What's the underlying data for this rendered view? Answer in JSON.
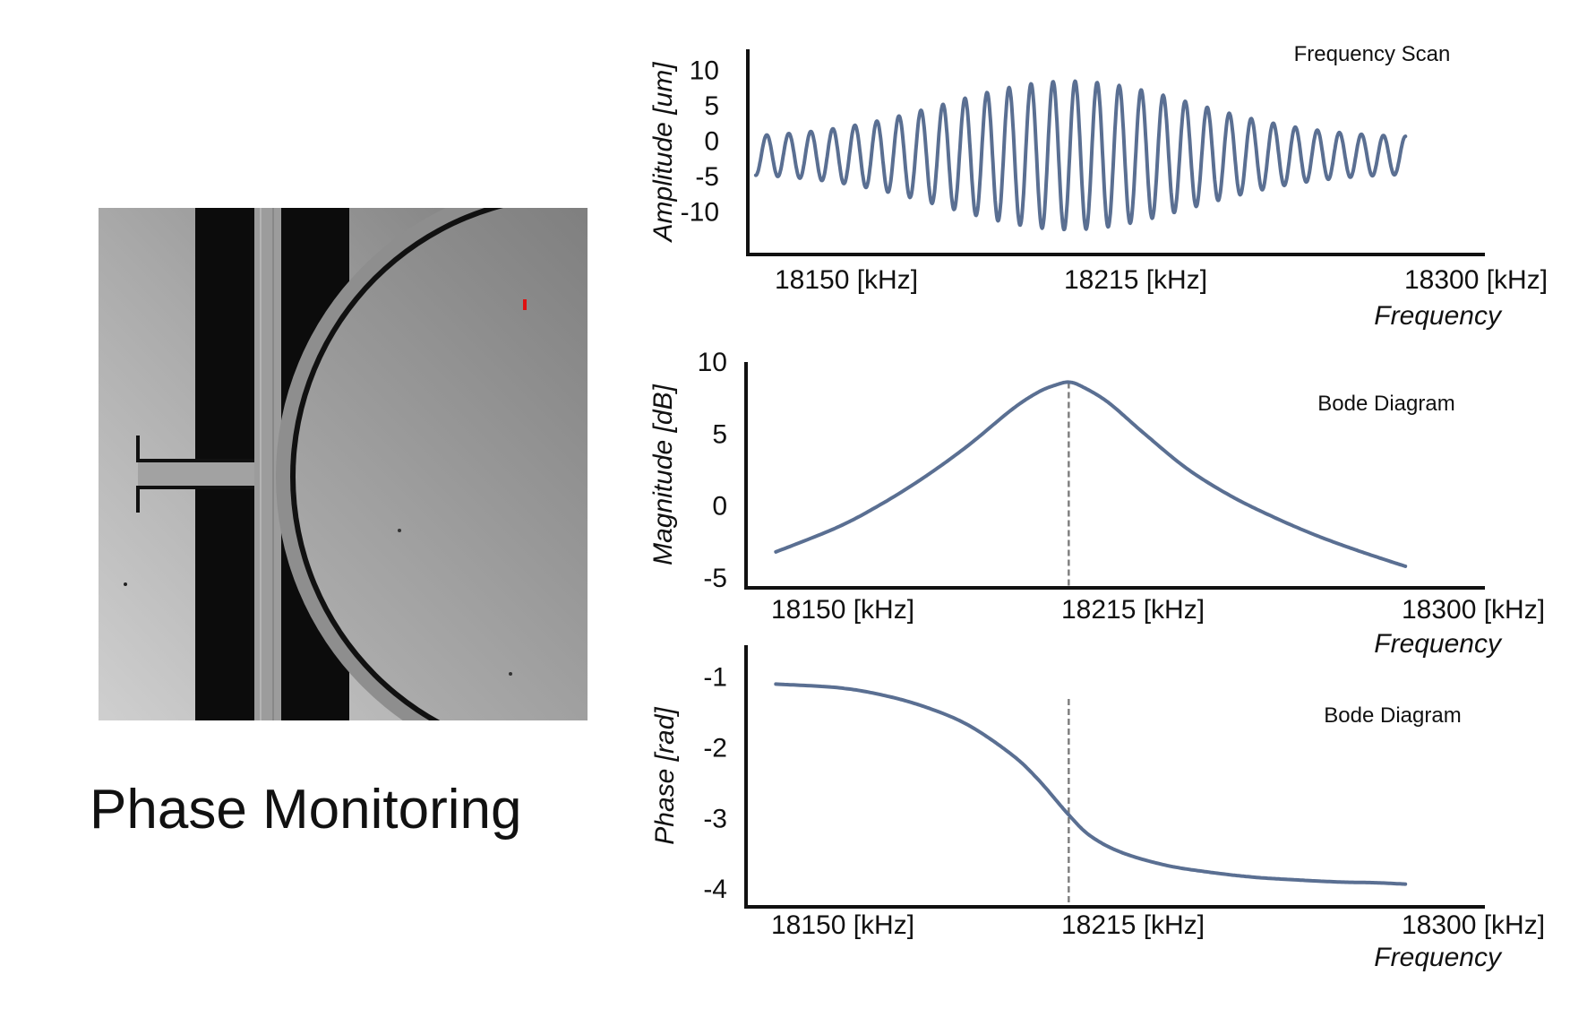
{
  "caption": "Phase Monitoring",
  "colors": {
    "series": "#5a6f92",
    "marker": "#808080",
    "axis": "#111111"
  },
  "chart_data": [
    {
      "type": "line",
      "title": "Frequency Scan",
      "xlabel": "Frequency",
      "ylabel": "Amplitude [um]",
      "xlim": [
        18140,
        18300
      ],
      "ylim": [
        -15,
        13
      ],
      "y_ticks": [
        "10",
        "5",
        "0",
        "-5",
        "-10"
      ],
      "y_tick_values": [
        10,
        5,
        0,
        -5,
        -10
      ],
      "x_ticks": [
        "18150 [kHz]",
        "18215 [kHz]",
        "18300 [kHz]"
      ],
      "series": [
        {
          "oscillation": {
            "x_start": 18141,
            "x_end": 18290,
            "cycles": 29.5,
            "center": -2,
            "envelope_peak_x": 18213,
            "envelope": {
              "min": 2.5,
              "peak": 10.5
            }
          }
        }
      ]
    },
    {
      "type": "line",
      "title": "Bode Diagram",
      "xlabel": "Frequency",
      "ylabel": "Magnitude [dB]",
      "xlim": [
        18140,
        18300
      ],
      "ylim": [
        -5.2,
        10
      ],
      "y_ticks": [
        "10",
        "5",
        "0",
        "-5"
      ],
      "y_tick_values": [
        10,
        5,
        0,
        -5
      ],
      "x_ticks": [
        "18150 [kHz]",
        "18215 [kHz]",
        "18300 [kHz]"
      ],
      "resonance_x": 18213,
      "series": [
        {
          "x": [
            18146,
            18160,
            18170,
            18180,
            18190,
            18200,
            18206,
            18210,
            18213,
            18216,
            18222,
            18230,
            18240,
            18250,
            18260,
            18270,
            18280,
            18290
          ],
          "y": [
            -3.2,
            -1.5,
            0.1,
            2,
            4.2,
            6.7,
            7.9,
            8.4,
            8.6,
            8.3,
            7.2,
            5.1,
            2.6,
            0.7,
            -0.8,
            -2.1,
            -3.2,
            -4.2
          ]
        }
      ]
    },
    {
      "type": "line",
      "title": "Bode Diagram",
      "xlabel": "Frequency",
      "ylabel": "Phase [rad]",
      "xlim": [
        18140,
        18300
      ],
      "ylim": [
        -4.15,
        -0.55
      ],
      "y_ticks": [
        "-1",
        "-2",
        "-3",
        "-4"
      ],
      "y_tick_values": [
        -1,
        -2,
        -3,
        -4
      ],
      "x_ticks": [
        "18150 [kHz]",
        "18215 [kHz]",
        "18300 [kHz]"
      ],
      "resonance_x": 18213,
      "series": [
        {
          "x": [
            18146,
            18160,
            18170,
            18180,
            18190,
            18200,
            18206,
            18213,
            18218,
            18225,
            18235,
            18245,
            18255,
            18265,
            18275,
            18283,
            18290
          ],
          "y": [
            -1.1,
            -1.15,
            -1.25,
            -1.42,
            -1.68,
            -2.1,
            -2.45,
            -2.95,
            -3.25,
            -3.48,
            -3.66,
            -3.76,
            -3.83,
            -3.87,
            -3.9,
            -3.91,
            -3.93
          ]
        }
      ]
    }
  ]
}
